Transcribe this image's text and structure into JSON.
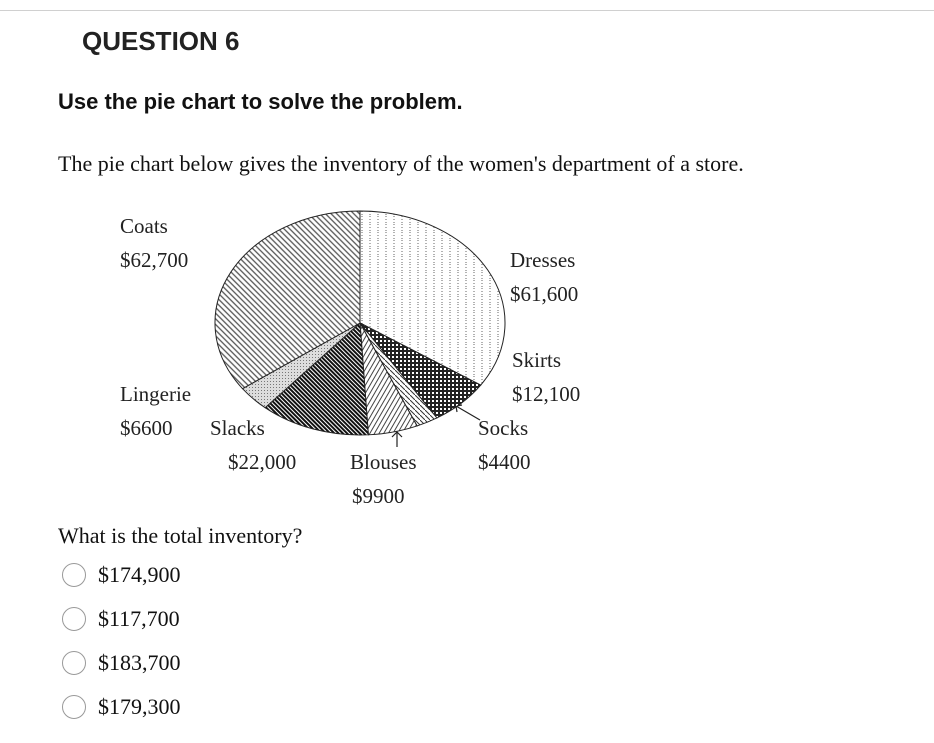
{
  "header": {
    "title": "QUESTION 6"
  },
  "instruction": "Use the pie chart to solve the problem.",
  "prompt": "The pie chart below gives the inventory of the women's department of a store.",
  "chart_data": {
    "type": "pie",
    "categories": [
      "Dresses",
      "Skirts",
      "Socks",
      "Blouses",
      "Slacks",
      "Lingerie",
      "Coats"
    ],
    "values": [
      61600,
      12100,
      4400,
      9900,
      22000,
      6600,
      62700
    ],
    "value_labels": [
      "$61,600",
      "$12,100",
      "$4400",
      "$9900",
      "$22,000",
      "$6600",
      "$62,700"
    ]
  },
  "question": "What is the total inventory?",
  "options": [
    "$174,900",
    "$117,700",
    "$183,700",
    "$179,300"
  ]
}
